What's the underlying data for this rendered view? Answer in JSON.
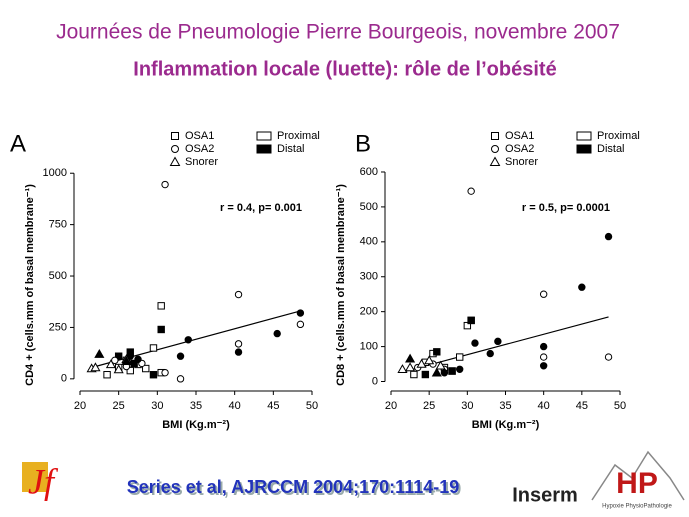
{
  "header": {
    "title": "Journées de Pneumologie Pierre Bourgeois, novembre 2007",
    "subtitle": "Inflammation locale (luette): rôle de l’obésité"
  },
  "chart_data": [
    {
      "type": "scatter",
      "panel": "A",
      "x_label": "BMI (Kg.m⁻²)",
      "y_label": "CD4 + (cells.mm of basal membrane⁻¹)",
      "annotation": "r = 0.4, p= 0.001",
      "xlim": [
        20,
        50
      ],
      "xticks": [
        20,
        25,
        30,
        35,
        40,
        45,
        50
      ],
      "ylim": [
        -30,
        1040
      ],
      "yticks": [
        0,
        250,
        500,
        750,
        1000
      ],
      "legend": {
        "shapes": [
          {
            "label": "OSA1",
            "marker": "square"
          },
          {
            "label": "OSA2",
            "marker": "circle"
          },
          {
            "label": "Snorer",
            "marker": "triangle"
          }
        ],
        "fills": [
          {
            "label": "Proximal",
            "filled": false
          },
          {
            "label": "Distal",
            "filled": true
          }
        ]
      },
      "color": "#000000",
      "series": [
        {
          "marker": "square",
          "filled": false,
          "x": [
            23.5,
            25,
            26,
            26.5,
            27.5,
            28.5,
            29.5,
            30.5,
            30.5
          ],
          "y": [
            20,
            55,
            90,
            40,
            70,
            50,
            150,
            355,
            30
          ]
        },
        {
          "marker": "square",
          "filled": true,
          "x": [
            25,
            26.5,
            27,
            30.5,
            29.5
          ],
          "y": [
            110,
            130,
            75,
            240,
            20
          ]
        },
        {
          "marker": "circle",
          "filled": false,
          "x": [
            24.5,
            26,
            28,
            31,
            31,
            33,
            40.5,
            40.5,
            48.5
          ],
          "y": [
            90,
            60,
            75,
            945,
            30,
            0,
            410,
            170,
            265
          ]
        },
        {
          "marker": "circle",
          "filled": true,
          "x": [
            26.5,
            27.5,
            33,
            34,
            40.5,
            45.5,
            48.5
          ],
          "y": [
            110,
            95,
            110,
            190,
            130,
            220,
            320
          ]
        },
        {
          "marker": "triangle",
          "filled": false,
          "x": [
            21.5,
            22,
            24,
            25,
            26
          ],
          "y": [
            50,
            55,
            70,
            45,
            95
          ]
        },
        {
          "marker": "triangle",
          "filled": true,
          "x": [
            22.5,
            26
          ],
          "y": [
            120,
            85
          ]
        }
      ],
      "trend": {
        "x": [
          22,
          48.5
        ],
        "y": [
          60,
          330
        ]
      }
    },
    {
      "type": "scatter",
      "panel": "B",
      "x_label": "BMI (Kg.m⁻²)",
      "y_label": "CD8 + (cells.mm of basal membrane⁻¹)",
      "annotation": "r = 0.5, p= 0.0001",
      "xlim": [
        20,
        50
      ],
      "xticks": [
        20,
        25,
        30,
        35,
        40,
        45,
        50
      ],
      "ylim": [
        -10,
        620
      ],
      "yticks": [
        0,
        100,
        200,
        300,
        400,
        500,
        600
      ],
      "legend": {
        "shapes": [
          {
            "label": "OSA1",
            "marker": "square"
          },
          {
            "label": "OSA2",
            "marker": "circle"
          },
          {
            "label": "Snorer",
            "marker": "triangle"
          }
        ],
        "fills": [
          {
            "label": "Proximal",
            "filled": false
          },
          {
            "label": "Distal",
            "filled": true
          }
        ]
      },
      "color": "#000000",
      "series": [
        {
          "marker": "square",
          "filled": false,
          "x": [
            23,
            24.5,
            25.5,
            27,
            28,
            29,
            30,
            30.5
          ],
          "y": [
            20,
            55,
            80,
            40,
            30,
            70,
            160,
            175
          ]
        },
        {
          "marker": "square",
          "filled": true,
          "x": [
            24.5,
            26,
            30.5,
            28
          ],
          "y": [
            20,
            85,
            175,
            30
          ]
        },
        {
          "marker": "circle",
          "filled": false,
          "x": [
            23.5,
            25.5,
            27,
            30.5,
            40,
            40,
            48.5
          ],
          "y": [
            40,
            50,
            35,
            545,
            250,
            70,
            70
          ]
        },
        {
          "marker": "circle",
          "filled": true,
          "x": [
            27,
            29,
            31,
            33,
            34,
            40,
            40,
            45,
            48.5
          ],
          "y": [
            25,
            35,
            110,
            80,
            115,
            100,
            45,
            270,
            415
          ]
        },
        {
          "marker": "triangle",
          "filled": false,
          "x": [
            21.5,
            22.5,
            24,
            25,
            26.5
          ],
          "y": [
            35,
            40,
            50,
            60,
            45
          ]
        },
        {
          "marker": "triangle",
          "filled": true,
          "x": [
            22.5,
            26
          ],
          "y": [
            65,
            25
          ]
        }
      ],
      "trend": {
        "x": [
          22,
          48.5
        ],
        "y": [
          30,
          185
        ]
      }
    }
  ],
  "footer": {
    "citation": "Series et al, AJRCCM 2004;170:1114-19",
    "logo_left": "Jf",
    "logo_inserm": "Inserm",
    "logo_hp": "HP",
    "logo_hp_caption": "Hypoxie PhysioPathologie"
  }
}
